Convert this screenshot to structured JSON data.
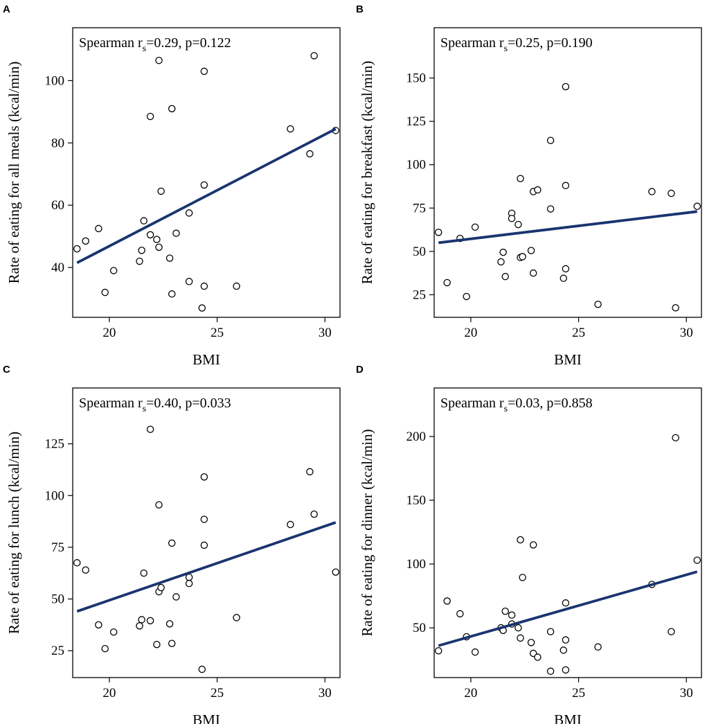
{
  "colors": {
    "line": "#1a3470",
    "points": "#000000",
    "frame": "#000000"
  },
  "chart_data": [
    {
      "type": "scatter",
      "panel": "A",
      "xlabel": "BMI",
      "ylabel": "Rate of eating for all meals (kcal/min)",
      "stat": {
        "prefix": "Spearman r",
        "sub": "s",
        "suffix": "=0.29, p=0.122"
      },
      "xlim": [
        18.3,
        30.7
      ],
      "ylim": [
        24,
        117
      ],
      "xticks": [
        20,
        25,
        30
      ],
      "yticks": [
        40,
        60,
        80,
        100
      ],
      "fit": {
        "x": [
          18.5,
          30.5
        ],
        "y": [
          41.5,
          84.5
        ]
      },
      "points": [
        {
          "x": 18.5,
          "y": 46
        },
        {
          "x": 18.9,
          "y": 48.5
        },
        {
          "x": 19.5,
          "y": 52.5
        },
        {
          "x": 19.8,
          "y": 32
        },
        {
          "x": 20.2,
          "y": 39
        },
        {
          "x": 21.4,
          "y": 42
        },
        {
          "x": 21.5,
          "y": 45.5
        },
        {
          "x": 21.6,
          "y": 55
        },
        {
          "x": 21.9,
          "y": 50.5
        },
        {
          "x": 21.9,
          "y": 88.5
        },
        {
          "x": 22.2,
          "y": 49
        },
        {
          "x": 22.3,
          "y": 46.5
        },
        {
          "x": 22.3,
          "y": 106.5
        },
        {
          "x": 22.4,
          "y": 64.5
        },
        {
          "x": 22.8,
          "y": 43
        },
        {
          "x": 22.9,
          "y": 31.5
        },
        {
          "x": 22.9,
          "y": 91
        },
        {
          "x": 23.1,
          "y": 51
        },
        {
          "x": 23.7,
          "y": 57.5
        },
        {
          "x": 23.7,
          "y": 35.5
        },
        {
          "x": 24.3,
          "y": 27
        },
        {
          "x": 24.4,
          "y": 34
        },
        {
          "x": 24.4,
          "y": 66.5
        },
        {
          "x": 24.4,
          "y": 103
        },
        {
          "x": 25.9,
          "y": 34
        },
        {
          "x": 28.4,
          "y": 84.5
        },
        {
          "x": 29.3,
          "y": 76.5
        },
        {
          "x": 29.5,
          "y": 108
        },
        {
          "x": 30.5,
          "y": 84
        }
      ]
    },
    {
      "type": "scatter",
      "panel": "B",
      "xlabel": "BMI",
      "ylabel": "Rate of eating for breakfast (kcal/min)",
      "stat": {
        "prefix": "Spearman r",
        "sub": "s",
        "suffix": "=0.25, p=0.190"
      },
      "xlim": [
        18.3,
        30.7
      ],
      "ylim": [
        12,
        179
      ],
      "xticks": [
        20,
        25,
        30
      ],
      "yticks": [
        25,
        50,
        75,
        100,
        125,
        150
      ],
      "fit": {
        "x": [
          18.5,
          30.5
        ],
        "y": [
          55,
          73
        ]
      },
      "points": [
        {
          "x": 18.5,
          "y": 61
        },
        {
          "x": 18.9,
          "y": 32
        },
        {
          "x": 19.5,
          "y": 57.5
        },
        {
          "x": 19.8,
          "y": 24
        },
        {
          "x": 20.2,
          "y": 64
        },
        {
          "x": 21.4,
          "y": 44
        },
        {
          "x": 21.5,
          "y": 49.5
        },
        {
          "x": 21.6,
          "y": 35.5
        },
        {
          "x": 21.9,
          "y": 72
        },
        {
          "x": 21.9,
          "y": 69
        },
        {
          "x": 22.2,
          "y": 65.5
        },
        {
          "x": 22.3,
          "y": 46.5
        },
        {
          "x": 22.3,
          "y": 92
        },
        {
          "x": 22.4,
          "y": 47
        },
        {
          "x": 22.8,
          "y": 50.5
        },
        {
          "x": 22.9,
          "y": 37.5
        },
        {
          "x": 22.9,
          "y": 84.5
        },
        {
          "x": 23.1,
          "y": 85.5
        },
        {
          "x": 23.7,
          "y": 114
        },
        {
          "x": 23.7,
          "y": 74.5
        },
        {
          "x": 24.3,
          "y": 34.5
        },
        {
          "x": 24.4,
          "y": 40
        },
        {
          "x": 24.4,
          "y": 88
        },
        {
          "x": 24.4,
          "y": 145
        },
        {
          "x": 25.9,
          "y": 19.5
        },
        {
          "x": 28.4,
          "y": 84.5
        },
        {
          "x": 29.3,
          "y": 83.5
        },
        {
          "x": 29.5,
          "y": 17.5
        },
        {
          "x": 30.5,
          "y": 76
        }
      ]
    },
    {
      "type": "scatter",
      "panel": "C",
      "xlabel": "BMI",
      "ylabel": "Rate of eating for lunch (kcal/min)",
      "stat": {
        "prefix": "Spearman r",
        "sub": "s",
        "suffix": "=0.40, p=0.033"
      },
      "xlim": [
        18.3,
        30.7
      ],
      "ylim": [
        12,
        152
      ],
      "xticks": [
        20,
        25,
        30
      ],
      "yticks": [
        25,
        50,
        75,
        100,
        125
      ],
      "fit": {
        "x": [
          18.5,
          30.5
        ],
        "y": [
          44,
          87
        ]
      },
      "points": [
        {
          "x": 18.5,
          "y": 67.5
        },
        {
          "x": 18.9,
          "y": 64
        },
        {
          "x": 19.5,
          "y": 37.5
        },
        {
          "x": 19.8,
          "y": 26
        },
        {
          "x": 20.2,
          "y": 34
        },
        {
          "x": 21.4,
          "y": 37
        },
        {
          "x": 21.5,
          "y": 40
        },
        {
          "x": 21.6,
          "y": 62.5
        },
        {
          "x": 21.9,
          "y": 132
        },
        {
          "x": 21.9,
          "y": 39.5
        },
        {
          "x": 22.2,
          "y": 28
        },
        {
          "x": 22.3,
          "y": 53.5
        },
        {
          "x": 22.3,
          "y": 95.5
        },
        {
          "x": 22.4,
          "y": 55.5
        },
        {
          "x": 22.8,
          "y": 38
        },
        {
          "x": 22.9,
          "y": 28.5
        },
        {
          "x": 22.9,
          "y": 77
        },
        {
          "x": 23.1,
          "y": 51
        },
        {
          "x": 23.7,
          "y": 57.5
        },
        {
          "x": 23.7,
          "y": 60.5
        },
        {
          "x": 24.3,
          "y": 16
        },
        {
          "x": 24.4,
          "y": 109
        },
        {
          "x": 24.4,
          "y": 88.5
        },
        {
          "x": 24.4,
          "y": 76
        },
        {
          "x": 25.9,
          "y": 41
        },
        {
          "x": 28.4,
          "y": 86
        },
        {
          "x": 29.3,
          "y": 111.5
        },
        {
          "x": 29.5,
          "y": 91
        },
        {
          "x": 30.5,
          "y": 63
        }
      ]
    },
    {
      "type": "scatter",
      "panel": "D",
      "xlabel": "BMI",
      "ylabel": "Rate of eating for dinner (kcal/min)",
      "stat": {
        "prefix": "Spearman r",
        "sub": "s",
        "suffix": "=0.03, p=0.858"
      },
      "xlim": [
        18.3,
        30.7
      ],
      "ylim": [
        11,
        238
      ],
      "xticks": [
        20,
        25,
        30
      ],
      "yticks": [
        50,
        100,
        150,
        200
      ],
      "fit": {
        "x": [
          18.5,
          30.5
        ],
        "y": [
          36,
          94
        ]
      },
      "points": [
        {
          "x": 18.5,
          "y": 32
        },
        {
          "x": 18.9,
          "y": 71
        },
        {
          "x": 19.5,
          "y": 61
        },
        {
          "x": 19.8,
          "y": 43
        },
        {
          "x": 20.2,
          "y": 31
        },
        {
          "x": 21.4,
          "y": 50
        },
        {
          "x": 21.5,
          "y": 48
        },
        {
          "x": 21.6,
          "y": 63
        },
        {
          "x": 21.9,
          "y": 60
        },
        {
          "x": 21.9,
          "y": 53
        },
        {
          "x": 22.2,
          "y": 50
        },
        {
          "x": 22.3,
          "y": 42
        },
        {
          "x": 22.3,
          "y": 119
        },
        {
          "x": 22.4,
          "y": 89.5
        },
        {
          "x": 22.8,
          "y": 38.5
        },
        {
          "x": 22.9,
          "y": 30
        },
        {
          "x": 22.9,
          "y": 115
        },
        {
          "x": 23.1,
          "y": 27
        },
        {
          "x": 23.7,
          "y": 16
        },
        {
          "x": 23.7,
          "y": 47
        },
        {
          "x": 24.3,
          "y": 32.5
        },
        {
          "x": 24.4,
          "y": 40.5
        },
        {
          "x": 24.4,
          "y": 69.5
        },
        {
          "x": 24.4,
          "y": 17
        },
        {
          "x": 25.9,
          "y": 35
        },
        {
          "x": 28.4,
          "y": 84
        },
        {
          "x": 29.3,
          "y": 47
        },
        {
          "x": 29.5,
          "y": 199
        },
        {
          "x": 30.5,
          "y": 103
        }
      ]
    }
  ]
}
